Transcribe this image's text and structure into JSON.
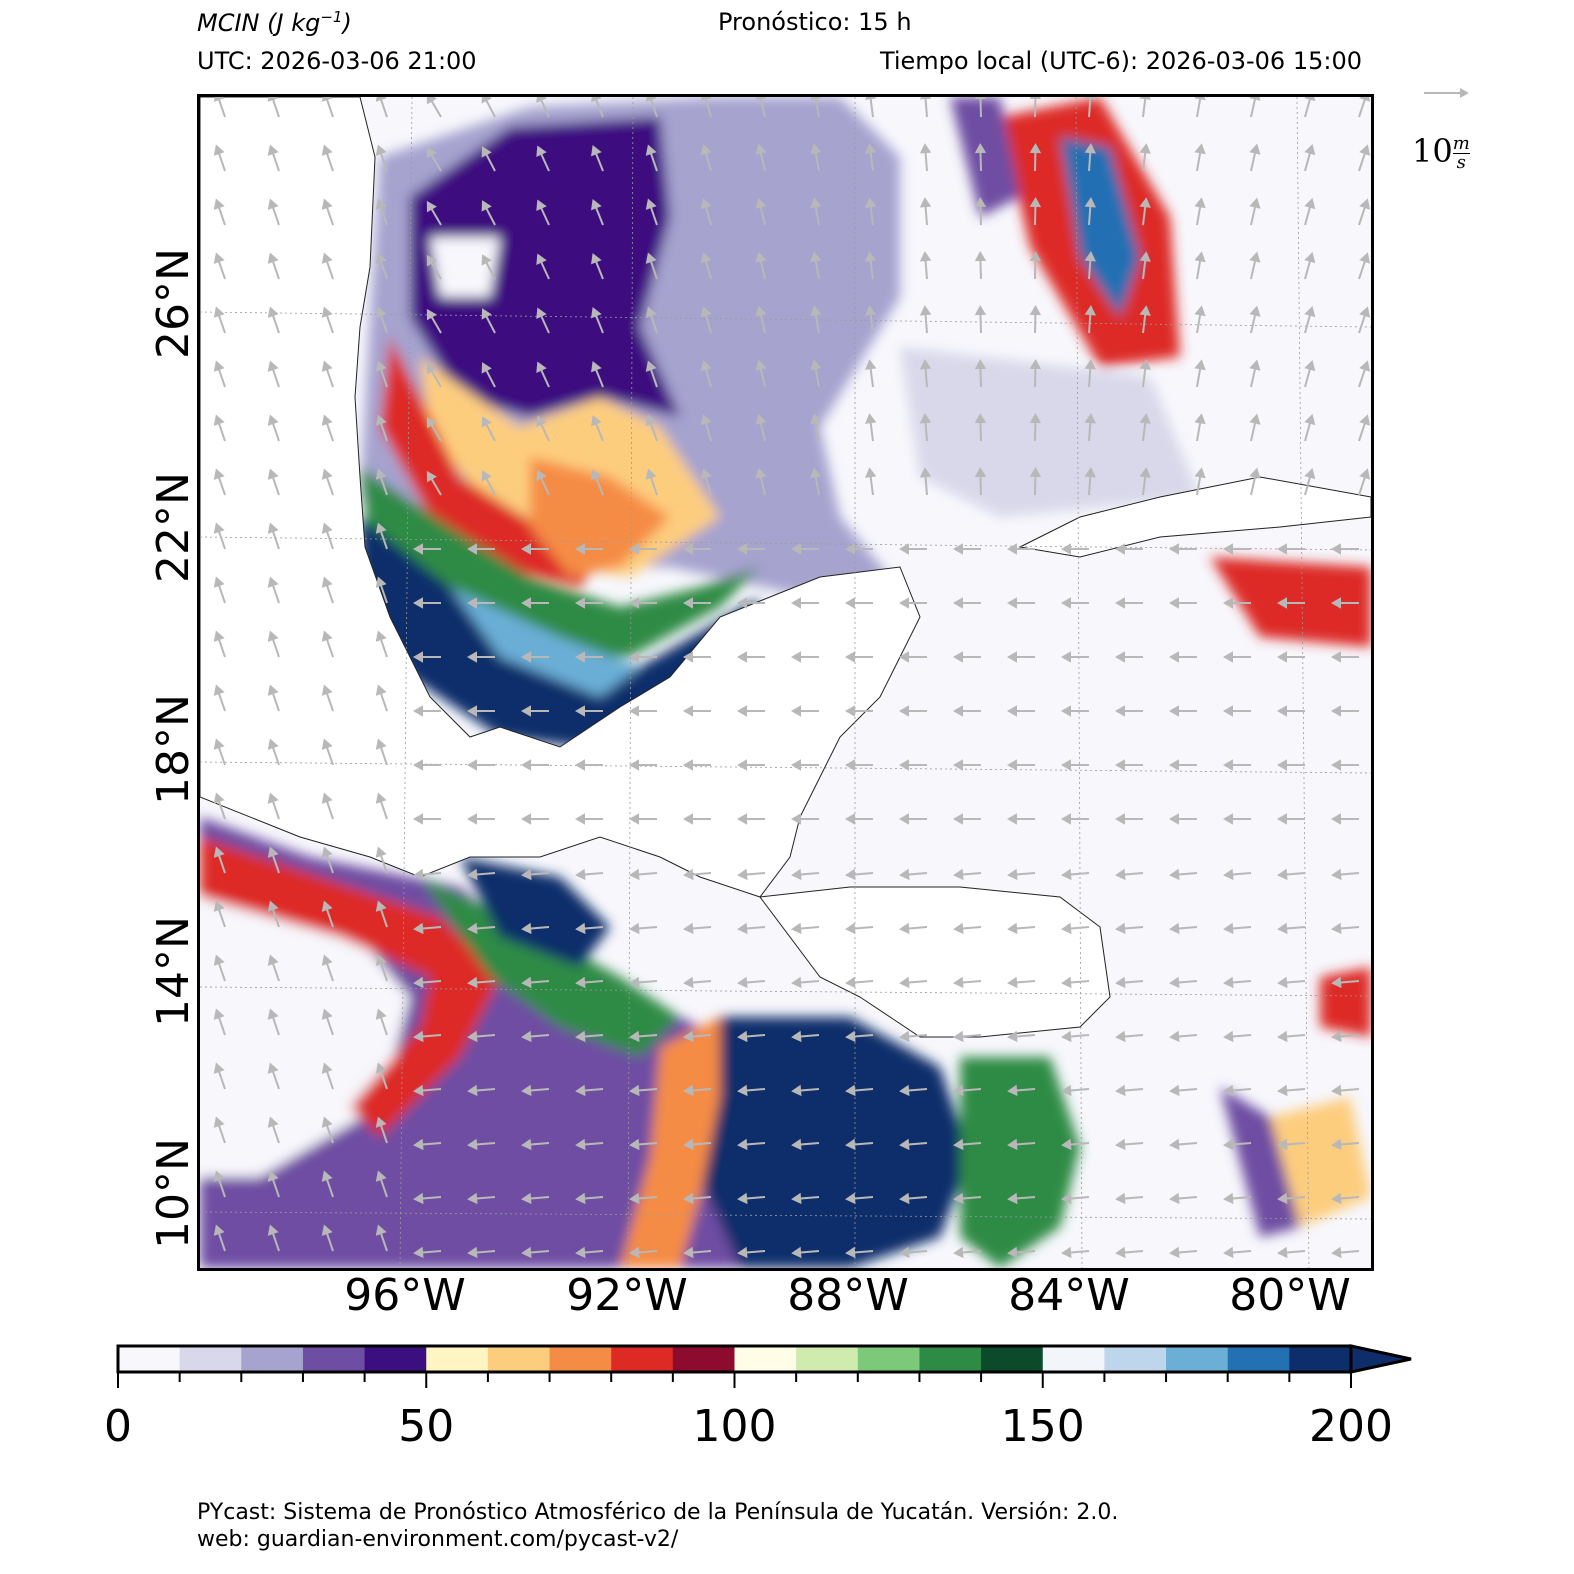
{
  "header": {
    "variable": "MCIN",
    "units": "(J kg",
    "units_exp": "−1",
    "units_close": ")",
    "forecast": "Pronóstico: 15 h",
    "utc": "UTC:  2026-03-06 21:00",
    "local": "Tiempo local (UTC-6): 2026-03-06 15:00"
  },
  "map": {
    "lat_labels": [
      "26°N",
      "22°N",
      "18°N",
      "14°N",
      "10°N"
    ],
    "lon_labels": [
      "96°W",
      "92°W",
      "88°W",
      "84°W",
      "80°W"
    ],
    "wind_key_value": "10",
    "wind_key_unit_num": "m",
    "wind_key_unit_den": "s"
  },
  "colorbar": {
    "ticks": [
      "0",
      "50",
      "100",
      "150",
      "200"
    ],
    "colors": [
      "#f7f7fc",
      "#d8d8ea",
      "#a6a3cf",
      "#6e4ea3",
      "#3c0f80",
      "#fff5c2",
      "#fdcd7e",
      "#f58c45",
      "#dd2a25",
      "#8c0b2e",
      "#fffde6",
      "#cfebad",
      "#7dc97a",
      "#2e8b45",
      "#0b4a2a",
      "#f2f6fb",
      "#bed6ec",
      "#6baed6",
      "#2370b3",
      "#0d2d6b"
    ],
    "extend": "max"
  },
  "footer": {
    "line1": "PYcast: Sistema de Pronóstico Atmosférico de la Península de Yucatán. Versión: 2.0.",
    "line2": "web: guardian-environment.com/pycast-v2/"
  }
}
